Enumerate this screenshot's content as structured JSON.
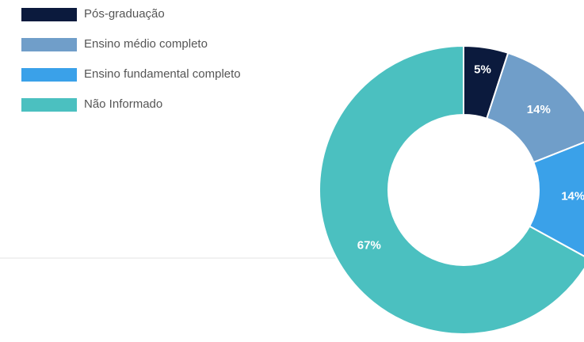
{
  "chart_data": {
    "type": "donut",
    "categories": [
      "Pós-graduação",
      "Ensino médio completo",
      "Ensino fundamental completo",
      "Não Informado"
    ],
    "values": [
      5,
      14,
      14,
      67
    ],
    "value_labels": [
      "5%",
      "14%",
      "14%",
      "67%"
    ],
    "colors": [
      "#0b1a3d",
      "#709ec9",
      "#3aa1e9",
      "#4bc0c0"
    ],
    "legend": "top-left"
  }
}
